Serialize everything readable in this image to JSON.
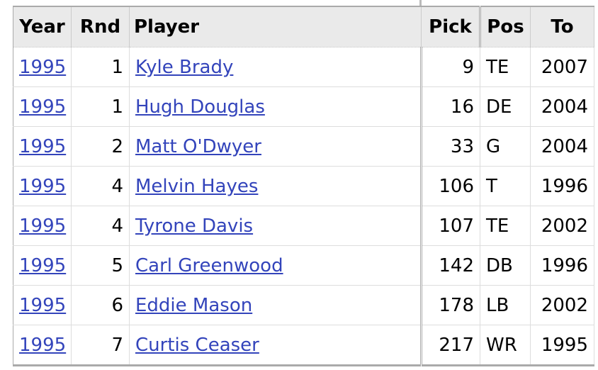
{
  "table": {
    "headers": [
      "Year",
      "Rnd",
      "Player",
      "Pick",
      "Pos",
      "To"
    ],
    "rows": [
      [
        "1995",
        "1",
        "Kyle Brady",
        "9",
        "TE",
        "2007"
      ],
      [
        "1995",
        "1",
        "Hugh Douglas",
        "16",
        "DE",
        "2004"
      ],
      [
        "1995",
        "2",
        "Matt O'Dwyer",
        "33",
        "G",
        "2004"
      ],
      [
        "1995",
        "4",
        "Melvin Hayes",
        "106",
        "T",
        "1996"
      ],
      [
        "1995",
        "4",
        "Tyrone Davis",
        "107",
        "TE",
        "2002"
      ],
      [
        "1995",
        "5",
        "Carl Greenwood",
        "142",
        "DB",
        "1996"
      ],
      [
        "1995",
        "6",
        "Eddie Mason",
        "178",
        "LB",
        "2002"
      ],
      [
        "1995",
        "7",
        "Curtis Ceaser",
        "217",
        "WR",
        "1995"
      ]
    ]
  }
}
